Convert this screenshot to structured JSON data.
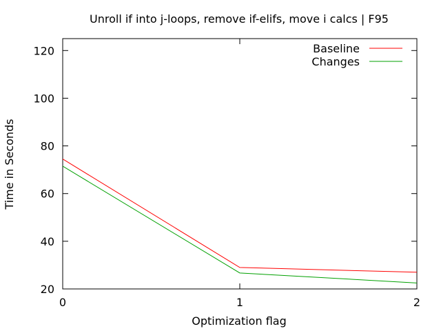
{
  "chart_data": {
    "type": "line",
    "title": "Unroll if into j-loops, remove if-elifs, move i calcs | F95",
    "xlabel": "Optimization flag",
    "ylabel": "Time in Seconds",
    "x": [
      0,
      1,
      2
    ],
    "xlim": [
      0,
      2
    ],
    "ylim": [
      20,
      125
    ],
    "xticks": [
      0,
      1,
      2
    ],
    "yticks": [
      20,
      40,
      60,
      80,
      100,
      120
    ],
    "grid": false,
    "legend_position": "top-right",
    "series": [
      {
        "name": "Baseline",
        "color": "#ff0000",
        "values": [
          74.5,
          29.0,
          27.0
        ]
      },
      {
        "name": "Changes",
        "color": "#00a000",
        "values": [
          71.5,
          26.7,
          22.5
        ]
      }
    ]
  }
}
